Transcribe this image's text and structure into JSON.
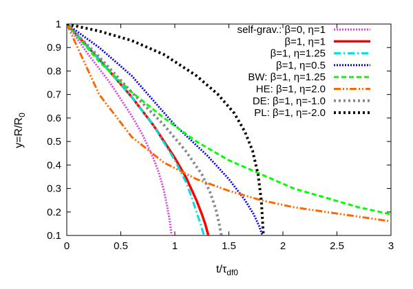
{
  "chart_data": {
    "type": "line",
    "xlabel": "t/τdf0",
    "xlabel_main": "t/τ",
    "xlabel_sub": "df0",
    "ylabel": "y=R/R0",
    "ylabel_main": "y=R/R",
    "ylabel_sub": "0",
    "xlim": [
      0,
      3
    ],
    "ylim": [
      0.1,
      1
    ],
    "x_ticks": [
      0,
      0.5,
      1,
      1.5,
      2,
      2.5,
      3
    ],
    "x_tick_labels": [
      "0",
      "0.5",
      "1",
      "1.5",
      "2",
      "2.5",
      "3"
    ],
    "y_ticks": [
      0.1,
      0.2,
      0.3,
      0.4,
      0.5,
      0.6,
      0.7,
      0.8,
      0.9,
      1
    ],
    "y_tick_labels": [
      "0.1",
      "0.2",
      "0.3",
      "0.4",
      "0.5",
      "0.6",
      "0.7",
      "0.8",
      "0.9",
      "1"
    ],
    "grid": false,
    "legend_placement": "top-right",
    "series": [
      {
        "name": "self-grav.: β=0, η=1",
        "color": "#e040e0",
        "dash": "dotted",
        "x": [
          0,
          0.2,
          0.4,
          0.6,
          0.7,
          0.8,
          0.85,
          0.9,
          0.93,
          0.95,
          0.97
        ],
        "y": [
          1,
          0.87,
          0.75,
          0.61,
          0.53,
          0.43,
          0.37,
          0.29,
          0.22,
          0.17,
          0.1
        ]
      },
      {
        "name": "β=1, η=1",
        "color": "#ff0000",
        "dash": "solid",
        "x": [
          0,
          0.3,
          0.6,
          0.8,
          1.0,
          1.1,
          1.2,
          1.25,
          1.28,
          1.31
        ],
        "y": [
          1,
          0.85,
          0.69,
          0.57,
          0.43,
          0.35,
          0.25,
          0.19,
          0.15,
          0.1
        ]
      },
      {
        "name": "β=1, η=1.25",
        "color": "#00e0e0",
        "dash": "dash-dot",
        "x": [
          0,
          0.3,
          0.6,
          0.8,
          1.0,
          1.1,
          1.15,
          1.2,
          1.23,
          1.27
        ],
        "y": [
          1,
          0.85,
          0.69,
          0.57,
          0.42,
          0.33,
          0.27,
          0.2,
          0.16,
          0.1
        ]
      },
      {
        "name": "β=1, η=0.5",
        "color": "#0000ff",
        "dash": "dotted",
        "x": [
          0,
          0.3,
          0.6,
          1.0,
          1.3,
          1.5,
          1.65,
          1.73,
          1.78,
          1.81
        ],
        "y": [
          1,
          0.9,
          0.78,
          0.57,
          0.44,
          0.34,
          0.25,
          0.19,
          0.14,
          0.1
        ]
      },
      {
        "name": "BW: β=1, η=1.25",
        "color": "#00ff00",
        "dash": "dashed",
        "x": [
          0,
          0.3,
          0.6,
          0.9,
          1.2,
          1.5,
          1.8,
          2.1,
          2.4,
          2.7,
          3.0
        ],
        "y": [
          1,
          0.84,
          0.71,
          0.6,
          0.5,
          0.42,
          0.36,
          0.3,
          0.26,
          0.22,
          0.19
        ]
      },
      {
        "name": "HE: β=1, η=2.0",
        "color": "#ff6600",
        "dash": "dash-dot-dot",
        "x": [
          0,
          0.3,
          0.6,
          0.9,
          1.2,
          1.5,
          1.8,
          2.1,
          2.4,
          2.7,
          3.0
        ],
        "y": [
          1,
          0.7,
          0.52,
          0.41,
          0.34,
          0.29,
          0.25,
          0.22,
          0.2,
          0.18,
          0.16
        ]
      },
      {
        "name": "DE: β=1, η=-1.0",
        "color": "#888888",
        "dash": "dotted-thick",
        "x": [
          0,
          0.3,
          0.6,
          0.9,
          1.1,
          1.25,
          1.33,
          1.38,
          1.41,
          1.43
        ],
        "y": [
          1,
          0.86,
          0.71,
          0.57,
          0.46,
          0.36,
          0.28,
          0.21,
          0.15,
          0.1
        ]
      },
      {
        "name": "PL: β=1, η=-2.0",
        "color": "#000000",
        "dash": "dotted-thick",
        "x": [
          0,
          0.3,
          0.6,
          0.9,
          1.2,
          1.4,
          1.55,
          1.65,
          1.72,
          1.77,
          1.8,
          1.82
        ],
        "y": [
          1,
          0.97,
          0.93,
          0.87,
          0.78,
          0.7,
          0.62,
          0.54,
          0.46,
          0.36,
          0.25,
          0.1
        ]
      }
    ]
  }
}
